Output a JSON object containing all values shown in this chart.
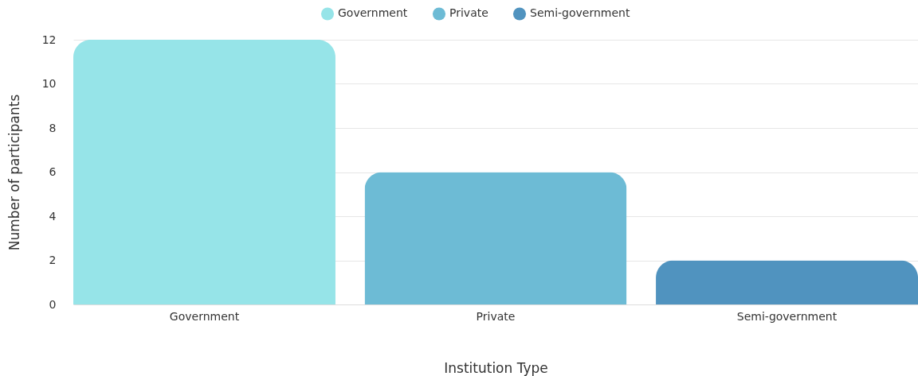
{
  "chart_data": {
    "type": "bar",
    "xlabel": "Institution Type",
    "ylabel": "Number of participants",
    "categories": [
      "Government",
      "Private",
      "Semi-government"
    ],
    "series": [
      {
        "name": "Government",
        "color": "#96e4e8",
        "values": [
          12,
          null,
          null
        ]
      },
      {
        "name": "Private",
        "color": "#6dbbd5",
        "values": [
          null,
          6,
          null
        ]
      },
      {
        "name": "Semi-government",
        "color": "#5093bf",
        "values": [
          null,
          null,
          2
        ]
      }
    ],
    "ylim": [
      0,
      12
    ],
    "yticks": [
      0,
      2,
      4,
      6,
      8,
      10,
      12
    ],
    "grid": "y",
    "legend": "top"
  }
}
